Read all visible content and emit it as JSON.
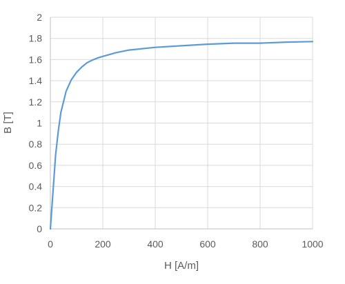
{
  "chart_data": {
    "type": "line",
    "title": "",
    "xlabel": "H [A/m]",
    "ylabel": "B [T]",
    "xlim": [
      0,
      1000
    ],
    "ylim": [
      0,
      2
    ],
    "x_ticks": [
      0,
      200,
      400,
      600,
      800,
      1000
    ],
    "y_ticks": [
      0,
      0.2,
      0.4,
      0.6,
      0.8,
      1,
      1.2,
      1.4,
      1.6,
      1.8,
      2
    ],
    "x_tick_labels": [
      "0",
      "200",
      "400",
      "600",
      "800",
      "1000"
    ],
    "y_tick_labels": [
      "0",
      "0.2",
      "0.4",
      "0.6",
      "0.8",
      "1",
      "1.2",
      "1.4",
      "1.6",
      "1.8",
      "2"
    ],
    "grid": true,
    "legend": "none",
    "series": [
      {
        "color": "#5b9bd5",
        "x": [
          0,
          10,
          20,
          30,
          40,
          50,
          60,
          80,
          100,
          120,
          140,
          160,
          180,
          200,
          250,
          300,
          400,
          500,
          600,
          700,
          800,
          900,
          1000
        ],
        "y": [
          0,
          0.35,
          0.7,
          0.92,
          1.1,
          1.2,
          1.3,
          1.41,
          1.48,
          1.53,
          1.57,
          1.595,
          1.615,
          1.63,
          1.665,
          1.69,
          1.715,
          1.73,
          1.745,
          1.755,
          1.755,
          1.765,
          1.77
        ]
      }
    ]
  }
}
